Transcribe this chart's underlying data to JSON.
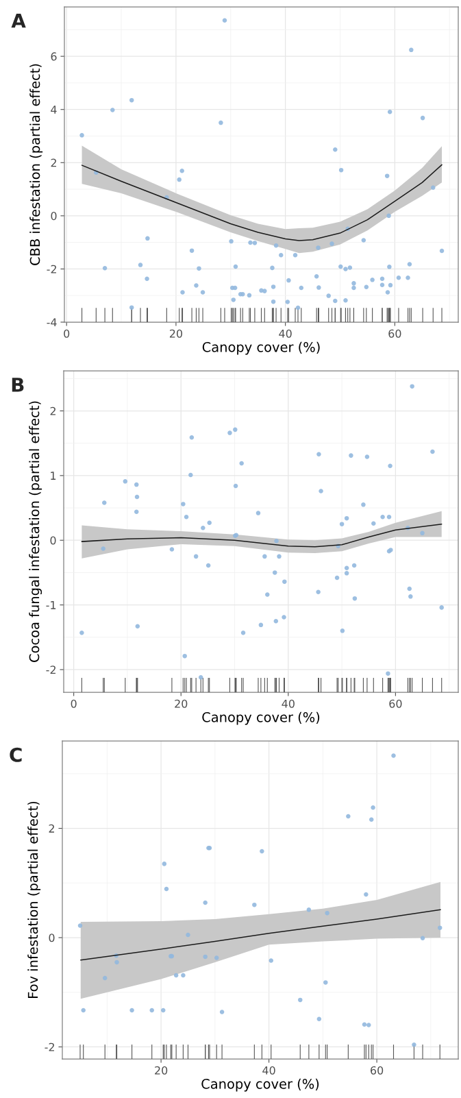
{
  "chart_data": [
    {
      "type": "scatter",
      "title": "A",
      "xlabel": "Canopy cover (%)",
      "ylabel": "CBB infestation (partial effect)",
      "xlim": [
        -0.4,
        71.6
      ],
      "ylim": [
        -4.0,
        7.86
      ],
      "xticks": [
        0,
        20,
        40,
        60
      ],
      "yticks": [
        -4,
        -2,
        0,
        2,
        4,
        6
      ],
      "grid": true,
      "legend": false,
      "series": [
        {
          "marker": "circle",
          "color": "#92b8de",
          "x": [
            2.8,
            5.4,
            8.4,
            11.9,
            28.9,
            28.2,
            20.6,
            21.1,
            49.1,
            50.2,
            58.6,
            59.1,
            63.0,
            65.1,
            67.0,
            18.3,
            58.9,
            14.8,
            30.1,
            33.6,
            34.4,
            38.3,
            39.2,
            41.8,
            46.0,
            48.5,
            51.4,
            54.3,
            68.6,
            22.9,
            7.0,
            13.5,
            14.7,
            11.9,
            21.2,
            23.7,
            24.2,
            24.9,
            30.3,
            30.8,
            30.9,
            30.5,
            31.8,
            32.2,
            33.4,
            35.6,
            36.2,
            37.6,
            37.8,
            37.8,
            40.6,
            40.4,
            42.3,
            42.9,
            45.7,
            46.1,
            47.9,
            49.1,
            50.1,
            51.0,
            51.8,
            51.0,
            52.5,
            52.5,
            54.8,
            55.9,
            57.7,
            57.7,
            58.7,
            59.0,
            59.2,
            60.7,
            62.4,
            62.7
          ],
          "values": [
            3.03,
            1.63,
            3.98,
            4.35,
            7.35,
            3.5,
            1.36,
            1.69,
            2.49,
            1.72,
            1.5,
            3.91,
            6.24,
            3.68,
            1.06,
            0.69,
            0.0,
            -0.85,
            -0.96,
            -1.01,
            -1.02,
            -1.12,
            -1.48,
            -1.48,
            -1.2,
            -1.05,
            -0.49,
            -0.92,
            -1.32,
            -1.31,
            -1.97,
            -1.85,
            -2.37,
            -3.45,
            -2.88,
            -2.62,
            -1.98,
            -2.88,
            -2.71,
            -2.71,
            -1.91,
            -3.16,
            -2.95,
            -2.95,
            -2.99,
            -2.81,
            -2.83,
            -1.96,
            -2.67,
            -3.23,
            -2.43,
            -3.24,
            -3.46,
            -2.71,
            -2.28,
            -2.7,
            -3.01,
            -3.2,
            -1.91,
            -2.0,
            -1.95,
            -3.18,
            -2.54,
            -2.71,
            -2.68,
            -2.41,
            -2.37,
            -2.6,
            -2.88,
            -1.92,
            -2.61,
            -2.33,
            -2.33,
            -1.82
          ]
        },
        {
          "type": "line",
          "color": "#1a1a1a",
          "x": [
            2.8,
            10,
            20,
            30,
            35,
            40,
            42.5,
            45,
            50,
            55,
            60,
            65,
            68.6
          ],
          "values": [
            1.9,
            1.3,
            0.5,
            -0.3,
            -0.62,
            -0.87,
            -0.93,
            -0.9,
            -0.65,
            -0.15,
            0.55,
            1.25,
            1.92
          ],
          "lower": [
            1.2,
            0.85,
            0.15,
            -0.62,
            -0.95,
            -1.25,
            -1.4,
            -1.35,
            -1.08,
            -0.55,
            0.15,
            0.75,
            1.25
          ],
          "upper": [
            2.64,
            1.75,
            0.85,
            0.02,
            -0.3,
            -0.5,
            -0.47,
            -0.45,
            -0.22,
            0.25,
            0.95,
            1.8,
            2.62
          ]
        }
      ]
    },
    {
      "type": "scatter",
      "title": "B",
      "xlabel": "Canopy cover (%)",
      "ylabel": "Cocoa fungal infestation (partial effect)",
      "xlim": [
        -1.87,
        71.7
      ],
      "ylim": [
        -2.35,
        2.62
      ],
      "xticks": [
        0,
        20,
        40,
        60
      ],
      "yticks": [
        -2,
        -1,
        0,
        1,
        2
      ],
      "grid": true,
      "legend": false,
      "series": [
        {
          "marker": "circle",
          "color": "#92b8de",
          "x": [
            63.1,
            29.1,
            30.1,
            22.0,
            31.3,
            21.8,
            30.2,
            45.7,
            46.1,
            51.7,
            54.7,
            59.0,
            66.9,
            9.6,
            11.7,
            11.8,
            11.7,
            5.7,
            20.4,
            21.0,
            24.1,
            25.3,
            34.4,
            30.1,
            30.3,
            37.8,
            50.0,
            50.9,
            54.0,
            55.9,
            57.6,
            58.8,
            62.3,
            65.0,
            5.5,
            18.3,
            22.8,
            25.1,
            35.6,
            38.3,
            37.5,
            39.3,
            36.1,
            49.3,
            50.9,
            50.9,
            52.3,
            49.1,
            45.6,
            52.4,
            58.8,
            59.1,
            62.6,
            62.8,
            68.6,
            1.5,
            11.9,
            31.6,
            34.9,
            37.7,
            39.2,
            50.1,
            20.7,
            23.7,
            58.6
          ],
          "values": [
            2.38,
            1.66,
            1.71,
            1.59,
            1.19,
            1.01,
            0.84,
            1.33,
            0.76,
            1.31,
            1.29,
            1.15,
            1.37,
            0.91,
            0.86,
            0.67,
            0.44,
            0.58,
            0.56,
            0.36,
            0.19,
            0.27,
            0.42,
            0.07,
            0.08,
            -0.01,
            0.25,
            0.34,
            0.55,
            0.26,
            0.36,
            0.36,
            0.19,
            0.11,
            -0.13,
            -0.14,
            -0.25,
            -0.39,
            -0.25,
            -0.25,
            -0.5,
            -0.64,
            -0.84,
            -0.09,
            -0.43,
            -0.51,
            -0.39,
            -0.58,
            -0.8,
            -0.9,
            -0.17,
            -0.15,
            -0.75,
            -0.87,
            -1.04,
            -1.43,
            -1.33,
            -1.43,
            -1.31,
            -1.25,
            -1.19,
            -1.4,
            -1.79,
            -2.12,
            -2.06
          ]
        },
        {
          "type": "line",
          "color": "#1a1a1a",
          "x": [
            1.5,
            10,
            20,
            30,
            40,
            45,
            50,
            55,
            60,
            68.6
          ],
          "values": [
            -0.02,
            0.02,
            0.04,
            0.0,
            -0.09,
            -0.1,
            -0.07,
            0.05,
            0.16,
            0.25
          ],
          "lower": [
            -0.28,
            -0.14,
            -0.06,
            -0.09,
            -0.19,
            -0.2,
            -0.17,
            -0.05,
            0.05,
            0.05
          ],
          "upper": [
            0.23,
            0.17,
            0.14,
            0.09,
            0.01,
            0.0,
            0.03,
            0.13,
            0.27,
            0.45
          ]
        }
      ]
    },
    {
      "type": "scatter",
      "title": "C",
      "xlabel": "Canopy cover (%)",
      "ylabel": "Fov infestation (partial effect)",
      "xlim": [
        1.7,
        75.1
      ],
      "ylim": [
        -2.22,
        3.6
      ],
      "xticks": [
        20,
        40,
        60
      ],
      "yticks": [
        -2,
        0,
        2
      ],
      "grid": true,
      "legend": false,
      "series": [
        {
          "marker": "circle",
          "color": "#92b8de",
          "x": [
            63.1,
            59.3,
            54.7,
            59.0,
            28.8,
            29.0,
            38.7,
            20.6,
            21.0,
            28.2,
            37.3,
            58.0,
            47.4,
            50.8,
            5.0,
            71.7,
            25.0,
            68.5,
            11.7,
            11.8,
            21.8,
            22.0,
            28.2,
            30.3,
            40.4,
            9.6,
            22.8,
            24.1,
            50.5,
            45.8,
            5.6,
            14.6,
            18.3,
            20.4,
            31.3,
            49.3,
            57.7,
            58.5,
            66.9
          ],
          "values": [
            3.33,
            2.38,
            2.22,
            2.16,
            1.64,
            1.64,
            1.58,
            1.35,
            0.89,
            0.64,
            0.6,
            0.79,
            0.51,
            0.45,
            0.22,
            0.18,
            0.05,
            -0.01,
            -0.33,
            -0.45,
            -0.34,
            -0.34,
            -0.35,
            -0.37,
            -0.42,
            -0.74,
            -0.69,
            -0.69,
            -0.82,
            -1.14,
            -1.33,
            -1.33,
            -1.33,
            -1.33,
            -1.36,
            -1.49,
            -1.59,
            -1.6,
            -1.96
          ]
        },
        {
          "type": "line",
          "color": "#1a1a1a",
          "x": [
            5.1,
            20,
            30,
            40,
            50,
            60,
            71.8
          ],
          "values": [
            -0.41,
            -0.21,
            -0.07,
            0.08,
            0.21,
            0.34,
            0.51
          ],
          "lower": [
            -1.12,
            -0.76,
            -0.45,
            -0.13,
            -0.07,
            -0.02,
            0.0
          ],
          "upper": [
            0.29,
            0.3,
            0.34,
            0.43,
            0.53,
            0.69,
            1.02
          ]
        }
      ]
    }
  ]
}
